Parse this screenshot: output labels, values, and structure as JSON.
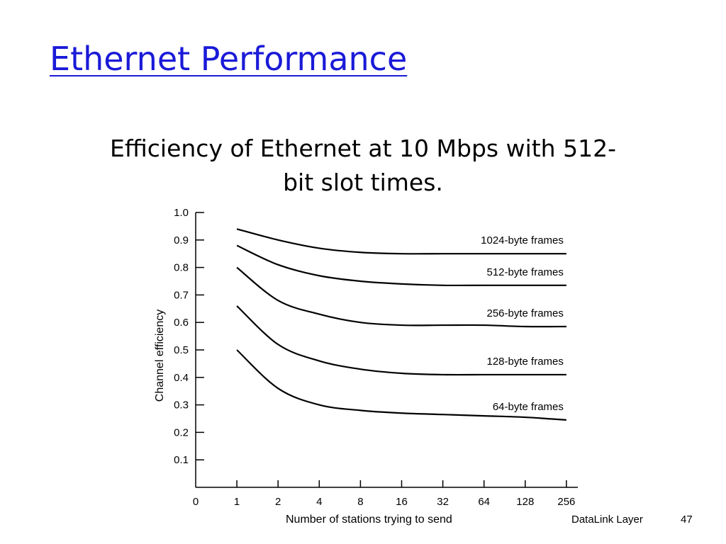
{
  "slide": {
    "title": "Ethernet Performance",
    "subtitle_line1": "Efficiency of Ethernet at 10 Mbps with 512-",
    "subtitle_line2": "bit slot times."
  },
  "footer": {
    "label": "DataLink Layer",
    "page": "47"
  },
  "chart_data": {
    "type": "line",
    "title": "",
    "xlabel": "Number of stations trying to send",
    "ylabel": "Channel efficiency",
    "x": [
      1,
      2,
      4,
      8,
      16,
      32,
      64,
      128,
      256
    ],
    "x_ticks": [
      "0",
      "1",
      "2",
      "4",
      "8",
      "16",
      "32",
      "64",
      "128",
      "256"
    ],
    "y_ticks": [
      "0.1",
      "0.2",
      "0.3",
      "0.4",
      "0.5",
      "0.6",
      "0.7",
      "0.8",
      "0.9",
      "1.0"
    ],
    "ylim": [
      0,
      1.0
    ],
    "x_scale": "log2",
    "grid": false,
    "legend": "none (series labeled inline)",
    "series": [
      {
        "name": "1024-byte frames",
        "values": [
          0.94,
          0.9,
          0.87,
          0.855,
          0.85,
          0.85,
          0.85,
          0.85,
          0.85
        ]
      },
      {
        "name": "512-byte frames",
        "values": [
          0.88,
          0.81,
          0.77,
          0.75,
          0.74,
          0.735,
          0.735,
          0.735,
          0.735
        ]
      },
      {
        "name": "256-byte frames",
        "values": [
          0.8,
          0.68,
          0.63,
          0.6,
          0.59,
          0.59,
          0.59,
          0.585,
          0.585
        ]
      },
      {
        "name": "128-byte frames",
        "values": [
          0.66,
          0.52,
          0.46,
          0.43,
          0.415,
          0.41,
          0.41,
          0.41,
          0.41
        ]
      },
      {
        "name": "64-byte frames",
        "values": [
          0.5,
          0.36,
          0.3,
          0.28,
          0.27,
          0.265,
          0.26,
          0.255,
          0.245
        ]
      }
    ],
    "line_color": "#000000"
  }
}
